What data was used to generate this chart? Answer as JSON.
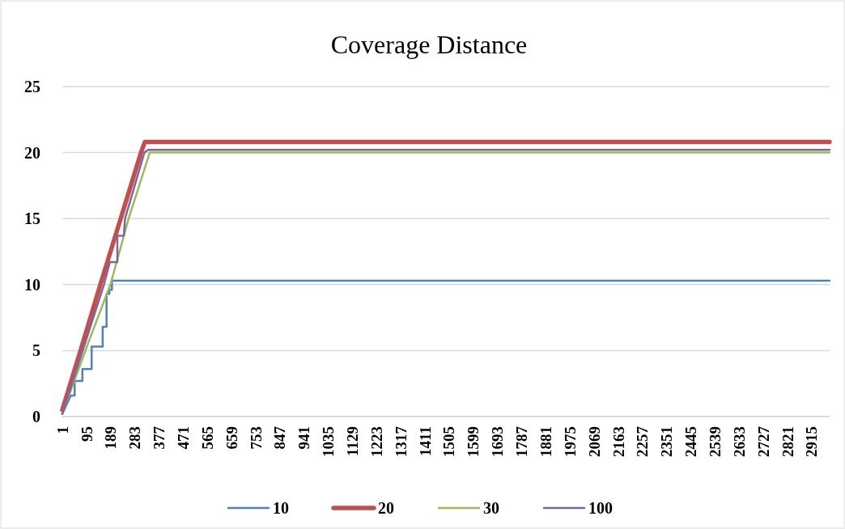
{
  "chart_data": {
    "type": "line",
    "title": "Coverage Distance",
    "xlim": [
      1,
      2985
    ],
    "xticks": [
      1,
      95,
      189,
      283,
      377,
      471,
      565,
      659,
      753,
      847,
      941,
      1035,
      1129,
      1223,
      1317,
      1411,
      1505,
      1599,
      1693,
      1787,
      1881,
      1975,
      2069,
      2163,
      2257,
      2351,
      2445,
      2539,
      2633,
      2727,
      2821,
      2915
    ],
    "ylim": [
      0,
      25
    ],
    "yticks": [
      0,
      5,
      10,
      15,
      20,
      25
    ],
    "grid": "y",
    "legend": "bottom",
    "line_style": "solid",
    "marker": "none",
    "series": [
      {
        "name": "10",
        "color": "#4f81bd",
        "x": [
          1,
          20,
          34,
          49,
          49,
          79,
          79,
          115,
          115,
          158,
          158,
          173,
          173,
          184,
          184,
          194,
          194,
          2985
        ],
        "values": [
          0.2,
          1.0,
          1.6,
          1.6,
          2.7,
          2.7,
          3.6,
          3.6,
          5.3,
          5.3,
          6.8,
          6.8,
          9.3,
          9.3,
          9.6,
          9.6,
          10.3,
          10.3
        ]
      },
      {
        "name": "20",
        "color": "#c0504d",
        "x": [
          1,
          75,
          149,
          228,
          307,
          322,
          2985
        ],
        "values": [
          0.5,
          5.2,
          10,
          15,
          20,
          20.8,
          20.8
        ]
      },
      {
        "name": "30",
        "color": "#9bbb59",
        "x": [
          1,
          100,
          188,
          259,
          341,
          2985
        ],
        "values": [
          0.2,
          5.5,
          10,
          15,
          20,
          20
        ]
      },
      {
        "name": "100",
        "color": "#8064a2",
        "x": [
          1,
          100,
          163,
          186,
          215,
          215,
          240,
          245,
          320,
          335,
          2985
        ],
        "values": [
          0.2,
          6.2,
          10,
          11.7,
          11.7,
          13.7,
          13.7,
          15,
          20,
          20.2,
          20.2
        ]
      }
    ]
  }
}
